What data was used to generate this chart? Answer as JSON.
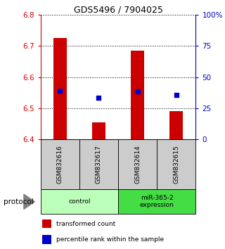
{
  "title": "GDS5496 / 7904025",
  "samples": [
    "GSM832616",
    "GSM832617",
    "GSM832614",
    "GSM832615"
  ],
  "bar_values": [
    6.725,
    6.455,
    6.685,
    6.49
  ],
  "bar_base": 6.4,
  "bar_color": "#cc0000",
  "blue_values": [
    6.556,
    6.535,
    6.554,
    6.544
  ],
  "blue_color": "#0000cc",
  "ylim_left": [
    6.4,
    6.8
  ],
  "yticks_left": [
    6.4,
    6.5,
    6.6,
    6.7,
    6.8
  ],
  "ylim_right": [
    0,
    100
  ],
  "yticks_right": [
    0,
    25,
    50,
    75,
    100
  ],
  "ytick_labels_right": [
    "0",
    "25",
    "50",
    "75",
    "100%"
  ],
  "left_axis_color": "#cc0000",
  "right_axis_color": "#0000cc",
  "groups": [
    {
      "label": "control",
      "samples": [
        0,
        1
      ],
      "color": "#bbffbb"
    },
    {
      "label": "miR-365-2\nexpression",
      "samples": [
        2,
        3
      ],
      "color": "#44dd44"
    }
  ],
  "protocol_label": "protocol",
  "legend_items": [
    {
      "color": "#cc0000",
      "label": "transformed count"
    },
    {
      "color": "#0000cc",
      "label": "percentile rank within the sample"
    }
  ],
  "sample_box_color": "#cccccc",
  "bar_width": 0.35
}
